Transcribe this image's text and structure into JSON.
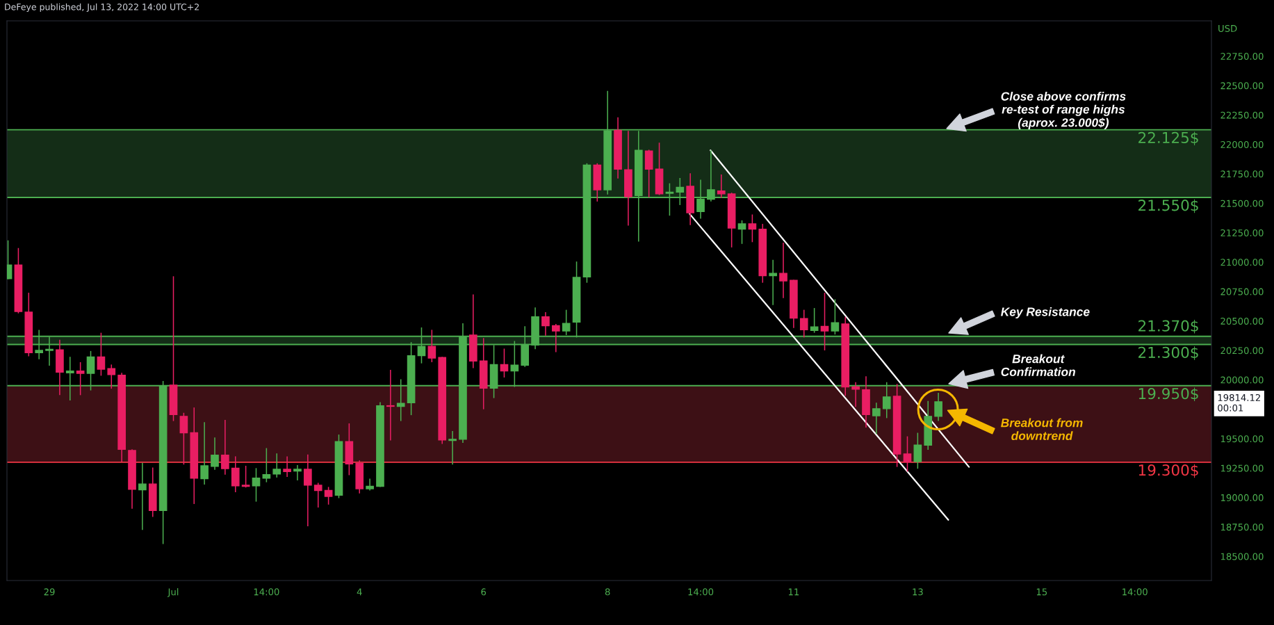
{
  "chart_data": {
    "type": "candlestick",
    "title": "DeFeye published, Jul 13, 2022 14:00 UTC+2",
    "ylabel": "USD",
    "xlim": [
      "2022-06-28T09:35",
      "2022-07-17T19:40"
    ],
    "ylim": [
      18295,
      23050
    ],
    "xticks": [
      {
        "value": "2022-06-29T02:00",
        "label": "29"
      },
      {
        "value": "2022-07-01T02:00",
        "label": "Jul"
      },
      {
        "value": "2022-07-02T14:00",
        "label": "14:00"
      },
      {
        "value": "2022-07-04T02:00",
        "label": "4"
      },
      {
        "value": "2022-07-06T02:00",
        "label": "6"
      },
      {
        "value": "2022-07-08T02:00",
        "label": "8"
      },
      {
        "value": "2022-07-09T14:00",
        "label": "14:00"
      },
      {
        "value": "2022-07-11T02:00",
        "label": "11"
      },
      {
        "value": "2022-07-13T02:00",
        "label": "13"
      },
      {
        "value": "2022-07-15T02:00",
        "label": "15"
      },
      {
        "value": "2022-07-16T14:00",
        "label": "14:00"
      }
    ],
    "yticks": [
      {
        "value": 18500,
        "label": "18500.00"
      },
      {
        "value": 18750,
        "label": "18750.00"
      },
      {
        "value": 19000,
        "label": "19000.00"
      },
      {
        "value": 19250,
        "label": "19250.00"
      },
      {
        "value": 19500,
        "label": "19500.00"
      },
      {
        "value": 20000,
        "label": "20000.00"
      },
      {
        "value": 20250,
        "label": "20250.00"
      },
      {
        "value": 20500,
        "label": "20500.00"
      },
      {
        "value": 20750,
        "label": "20750.00"
      },
      {
        "value": 21000,
        "label": "21000.00"
      },
      {
        "value": 21250,
        "label": "21250.00"
      },
      {
        "value": 21500,
        "label": "21500.00"
      },
      {
        "value": 21750,
        "label": "21750.00"
      },
      {
        "value": 22000,
        "label": "22000.00"
      },
      {
        "value": 22250,
        "label": "22250.00"
      },
      {
        "value": 22500,
        "label": "22500.00"
      },
      {
        "value": 22750,
        "label": "22750.00"
      }
    ],
    "bands": [
      {
        "axis": "y",
        "from": 21550,
        "to": 22125,
        "color": "#142d17"
      },
      {
        "axis": "y",
        "from": 20300,
        "to": 20370,
        "color": "#142d17"
      },
      {
        "axis": "y",
        "from": 19300,
        "to": 19950,
        "color": "#3d1015"
      }
    ],
    "ref_lines": [
      {
        "axis": "y",
        "value": 22125,
        "color": "#4caf50"
      },
      {
        "axis": "y",
        "value": 21550,
        "color": "#4caf50"
      },
      {
        "axis": "y",
        "value": 20370,
        "color": "#4caf50"
      },
      {
        "axis": "y",
        "value": 20300,
        "color": "#4caf50"
      },
      {
        "axis": "y",
        "value": 19950,
        "color": "#4caf50"
      },
      {
        "axis": "y",
        "value": 19300,
        "color": "#f23645"
      }
    ],
    "series": [
      {
        "type": "line",
        "color": "#ffffff",
        "x": [
          "2022-07-09T17:50",
          "2022-07-13T21:50"
        ],
        "values": [
          21950,
          19260
        ]
      },
      {
        "type": "line",
        "color": "#ffffff",
        "x": [
          "2022-07-09T09:45",
          "2022-07-13T13:50"
        ],
        "values": [
          21410,
          18810
        ]
      },
      {
        "x": [
          "2022-06-28T10:00",
          "2022-06-28T14:00",
          "2022-06-28T18:00",
          "2022-06-28T22:00",
          "2022-06-29T02:00",
          "2022-06-29T06:00",
          "2022-06-29T10:00",
          "2022-06-29T14:00",
          "2022-06-29T18:00",
          "2022-06-29T22:00",
          "2022-06-30T02:00",
          "2022-06-30T06:00",
          "2022-06-30T10:00",
          "2022-06-30T14:00",
          "2022-06-30T18:00",
          "2022-06-30T22:00",
          "2022-07-01T02:00",
          "2022-07-01T06:00",
          "2022-07-01T10:00",
          "2022-07-01T14:00",
          "2022-07-01T18:00",
          "2022-07-01T22:00",
          "2022-07-02T02:00",
          "2022-07-02T06:00",
          "2022-07-02T10:00",
          "2022-07-02T14:00",
          "2022-07-02T18:00",
          "2022-07-02T22:00",
          "2022-07-03T02:00",
          "2022-07-03T06:00",
          "2022-07-03T10:00",
          "2022-07-03T14:00",
          "2022-07-03T18:00",
          "2022-07-03T22:00",
          "2022-07-04T02:00",
          "2022-07-04T06:00",
          "2022-07-04T10:00",
          "2022-07-04T14:00",
          "2022-07-04T18:00",
          "2022-07-04T22:00",
          "2022-07-05T02:00",
          "2022-07-05T06:00",
          "2022-07-05T10:00",
          "2022-07-05T14:00",
          "2022-07-05T18:00",
          "2022-07-05T22:00",
          "2022-07-06T02:00",
          "2022-07-06T06:00",
          "2022-07-06T10:00",
          "2022-07-06T14:00",
          "2022-07-06T18:00",
          "2022-07-06T22:00",
          "2022-07-07T02:00",
          "2022-07-07T06:00",
          "2022-07-07T10:00",
          "2022-07-07T14:00",
          "2022-07-07T18:00",
          "2022-07-07T22:00",
          "2022-07-08T02:00",
          "2022-07-08T06:00",
          "2022-07-08T10:00",
          "2022-07-08T14:00",
          "2022-07-08T18:00",
          "2022-07-08T22:00",
          "2022-07-09T02:00",
          "2022-07-09T06:00",
          "2022-07-09T10:00",
          "2022-07-09T14:00",
          "2022-07-09T18:00",
          "2022-07-09T22:00",
          "2022-07-10T02:00",
          "2022-07-10T06:00",
          "2022-07-10T10:00",
          "2022-07-10T14:00",
          "2022-07-10T18:00",
          "2022-07-10T22:00",
          "2022-07-11T02:00",
          "2022-07-11T06:00",
          "2022-07-11T10:00",
          "2022-07-11T14:00",
          "2022-07-11T18:00",
          "2022-07-11T22:00",
          "2022-07-12T02:00",
          "2022-07-12T06:00",
          "2022-07-12T10:00",
          "2022-07-12T14:00",
          "2022-07-12T18:00",
          "2022-07-12T22:00",
          "2022-07-13T02:00",
          "2022-07-13T06:00",
          "2022-07-13T10:00"
        ],
        "ohlc": [
          [
            20860,
            21185,
            20855,
            20975
          ],
          [
            20975,
            21120,
            20565,
            20580
          ],
          [
            20575,
            20740,
            20200,
            20230
          ],
          [
            20230,
            20425,
            20175,
            20250
          ],
          [
            20250,
            20365,
            20120,
            20260
          ],
          [
            20255,
            20340,
            19870,
            20065
          ],
          [
            20060,
            20195,
            19825,
            20075
          ],
          [
            20075,
            20150,
            19870,
            20055
          ],
          [
            20055,
            20245,
            19910,
            20195
          ],
          [
            20195,
            20400,
            20035,
            20090
          ],
          [
            20095,
            20130,
            19925,
            20045
          ],
          [
            20040,
            20060,
            19305,
            19410
          ],
          [
            19400,
            19410,
            18905,
            19070
          ],
          [
            19065,
            19295,
            18725,
            19115
          ],
          [
            19115,
            19255,
            18835,
            18890
          ],
          [
            18890,
            19990,
            18605,
            19950
          ],
          [
            19955,
            20880,
            19650,
            19705
          ],
          [
            19690,
            19720,
            19280,
            19550
          ],
          [
            19550,
            19765,
            18945,
            19165
          ],
          [
            19160,
            19640,
            19110,
            19270
          ],
          [
            19265,
            19510,
            19235,
            19360
          ],
          [
            19360,
            19660,
            19195,
            19245
          ],
          [
            19250,
            19350,
            19045,
            19100
          ],
          [
            19105,
            19270,
            19085,
            19095
          ],
          [
            19100,
            19250,
            18965,
            19165
          ],
          [
            19165,
            19420,
            19130,
            19195
          ],
          [
            19200,
            19375,
            19170,
            19240
          ],
          [
            19240,
            19350,
            19175,
            19220
          ],
          [
            19225,
            19275,
            19145,
            19240
          ],
          [
            19240,
            19365,
            18755,
            19105
          ],
          [
            19105,
            19125,
            18915,
            19060
          ],
          [
            19060,
            19090,
            18940,
            19010
          ],
          [
            19020,
            19535,
            18995,
            19475
          ],
          [
            19475,
            19630,
            19190,
            19285
          ],
          [
            19290,
            19315,
            19035,
            19075
          ],
          [
            19075,
            19160,
            19060,
            19095
          ],
          [
            19095,
            19810,
            19090,
            19780
          ],
          [
            19780,
            20085,
            19485,
            19775
          ],
          [
            19775,
            20005,
            19650,
            19800
          ],
          [
            19805,
            20320,
            19700,
            20205
          ],
          [
            20205,
            20445,
            20140,
            20285
          ],
          [
            20285,
            20425,
            20150,
            20185
          ],
          [
            20190,
            20195,
            19455,
            19490
          ],
          [
            19485,
            19565,
            19280,
            19495
          ],
          [
            19495,
            20480,
            19465,
            20370
          ],
          [
            20380,
            20725,
            20100,
            20160
          ],
          [
            20160,
            20355,
            19750,
            19930
          ],
          [
            19930,
            20295,
            19845,
            20130
          ],
          [
            20130,
            20265,
            20020,
            20075
          ],
          [
            20075,
            20330,
            19940,
            20125
          ],
          [
            20125,
            20455,
            20110,
            20295
          ],
          [
            20295,
            20615,
            20260,
            20535
          ],
          [
            20535,
            20575,
            20375,
            20460
          ],
          [
            20460,
            20475,
            20235,
            20415
          ],
          [
            20415,
            20595,
            20380,
            20480
          ],
          [
            20490,
            21005,
            20360,
            20870
          ],
          [
            20875,
            21840,
            20825,
            21825
          ],
          [
            21825,
            21840,
            21515,
            21615
          ],
          [
            21615,
            22455,
            21575,
            22115
          ],
          [
            22120,
            22230,
            21710,
            21790
          ],
          [
            21785,
            22115,
            21310,
            21555
          ],
          [
            21565,
            22115,
            21175,
            21950
          ],
          [
            21945,
            21955,
            21550,
            21790
          ],
          [
            21790,
            22015,
            21570,
            21580
          ],
          [
            21585,
            21670,
            21395,
            21595
          ],
          [
            21595,
            21715,
            21485,
            21635
          ],
          [
            21645,
            21755,
            21315,
            21420
          ],
          [
            21430,
            21700,
            21370,
            21535
          ],
          [
            21535,
            21950,
            21515,
            21615
          ],
          [
            21605,
            21745,
            21545,
            21580
          ],
          [
            21580,
            21590,
            21125,
            21290
          ],
          [
            21280,
            21355,
            21155,
            21325
          ],
          [
            21325,
            21405,
            21170,
            21280
          ],
          [
            21280,
            21325,
            20825,
            20885
          ],
          [
            20885,
            21020,
            20635,
            20905
          ],
          [
            20905,
            21165,
            20695,
            20840
          ],
          [
            20845,
            20850,
            20440,
            20525
          ],
          [
            20520,
            20595,
            20360,
            20425
          ],
          [
            20420,
            20610,
            20400,
            20450
          ],
          [
            20455,
            20740,
            20250,
            20415
          ],
          [
            20415,
            20685,
            20385,
            20485
          ],
          [
            20475,
            20535,
            19865,
            19940
          ],
          [
            19940,
            19980,
            19770,
            19920
          ],
          [
            19915,
            20030,
            19595,
            19705
          ],
          [
            19695,
            19805,
            19540,
            19755
          ],
          [
            19755,
            19980,
            19675,
            19855
          ],
          [
            19860,
            19965,
            19260,
            19370
          ],
          [
            19370,
            19520,
            19220,
            19305
          ],
          [
            19305,
            19550,
            19245,
            19445
          ],
          [
            19445,
            19820,
            19405,
            19690
          ],
          [
            19690,
            19890,
            19650,
            19814.12
          ]
        ],
        "colors": [
          "#4caf50",
          "#e91e63",
          "#e91e63",
          "#4caf50",
          "#4caf50",
          "#e91e63",
          "#4caf50",
          "#e91e63",
          "#4caf50",
          "#e91e63",
          "#e91e63",
          "#e91e63",
          "#e91e63",
          "#4caf50",
          "#e91e63",
          "#4caf50",
          "#e91e63",
          "#e91e63",
          "#e91e63",
          "#4caf50",
          "#4caf50",
          "#e91e63",
          "#e91e63",
          "#e91e63",
          "#4caf50",
          "#4caf50",
          "#4caf50",
          "#e91e63",
          "#4caf50",
          "#e91e63",
          "#e91e63",
          "#e91e63",
          "#4caf50",
          "#e91e63",
          "#e91e63",
          "#4caf50",
          "#4caf50",
          "#e91e63",
          "#4caf50",
          "#4caf50",
          "#4caf50",
          "#e91e63",
          "#e91e63",
          "#4caf50",
          "#4caf50",
          "#e91e63",
          "#e91e63",
          "#4caf50",
          "#e91e63",
          "#4caf50",
          "#4caf50",
          "#4caf50",
          "#e91e63",
          "#e91e63",
          "#4caf50",
          "#4caf50",
          "#4caf50",
          "#e91e63",
          "#4caf50",
          "#e91e63",
          "#e91e63",
          "#4caf50",
          "#e91e63",
          "#e91e63",
          "#4caf50",
          "#4caf50",
          "#e91e63",
          "#4caf50",
          "#4caf50",
          "#e91e63",
          "#e91e63",
          "#4caf50",
          "#e91e63",
          "#e91e63",
          "#4caf50",
          "#e91e63",
          "#e91e63",
          "#e91e63",
          "#4caf50",
          "#e91e63",
          "#4caf50",
          "#e91e63",
          "#e91e63",
          "#e91e63",
          "#4caf50",
          "#4caf50",
          "#e91e63",
          "#e91e63",
          "#4caf50",
          "#4caf50",
          "#4caf50"
        ]
      }
    ],
    "annotations": [
      {
        "text": "22.125$",
        "x": "2022-07-17T03:00",
        "y": 22125
      },
      {
        "text": "21.550$",
        "x": "2022-07-17T03:00",
        "y": 21550
      },
      {
        "text": "21.370$",
        "x": "2022-07-17T03:00",
        "y": 20370
      },
      {
        "text": "21.300$",
        "x": "2022-07-17T03:00",
        "y": 20300
      },
      {
        "text": "19.950$",
        "x": "2022-07-17T03:00",
        "y": 19950
      },
      {
        "text": "19.300$",
        "x": "2022-07-17T03:00",
        "y": 19300
      },
      "Close above confirms\nre-test of range highs\n(aprox. 23.000$)",
      "Key Resistance",
      "Breakout\nConfirmation",
      "Breakout from\ndowntrend",
      "19814.12\n00:01"
    ]
  }
}
